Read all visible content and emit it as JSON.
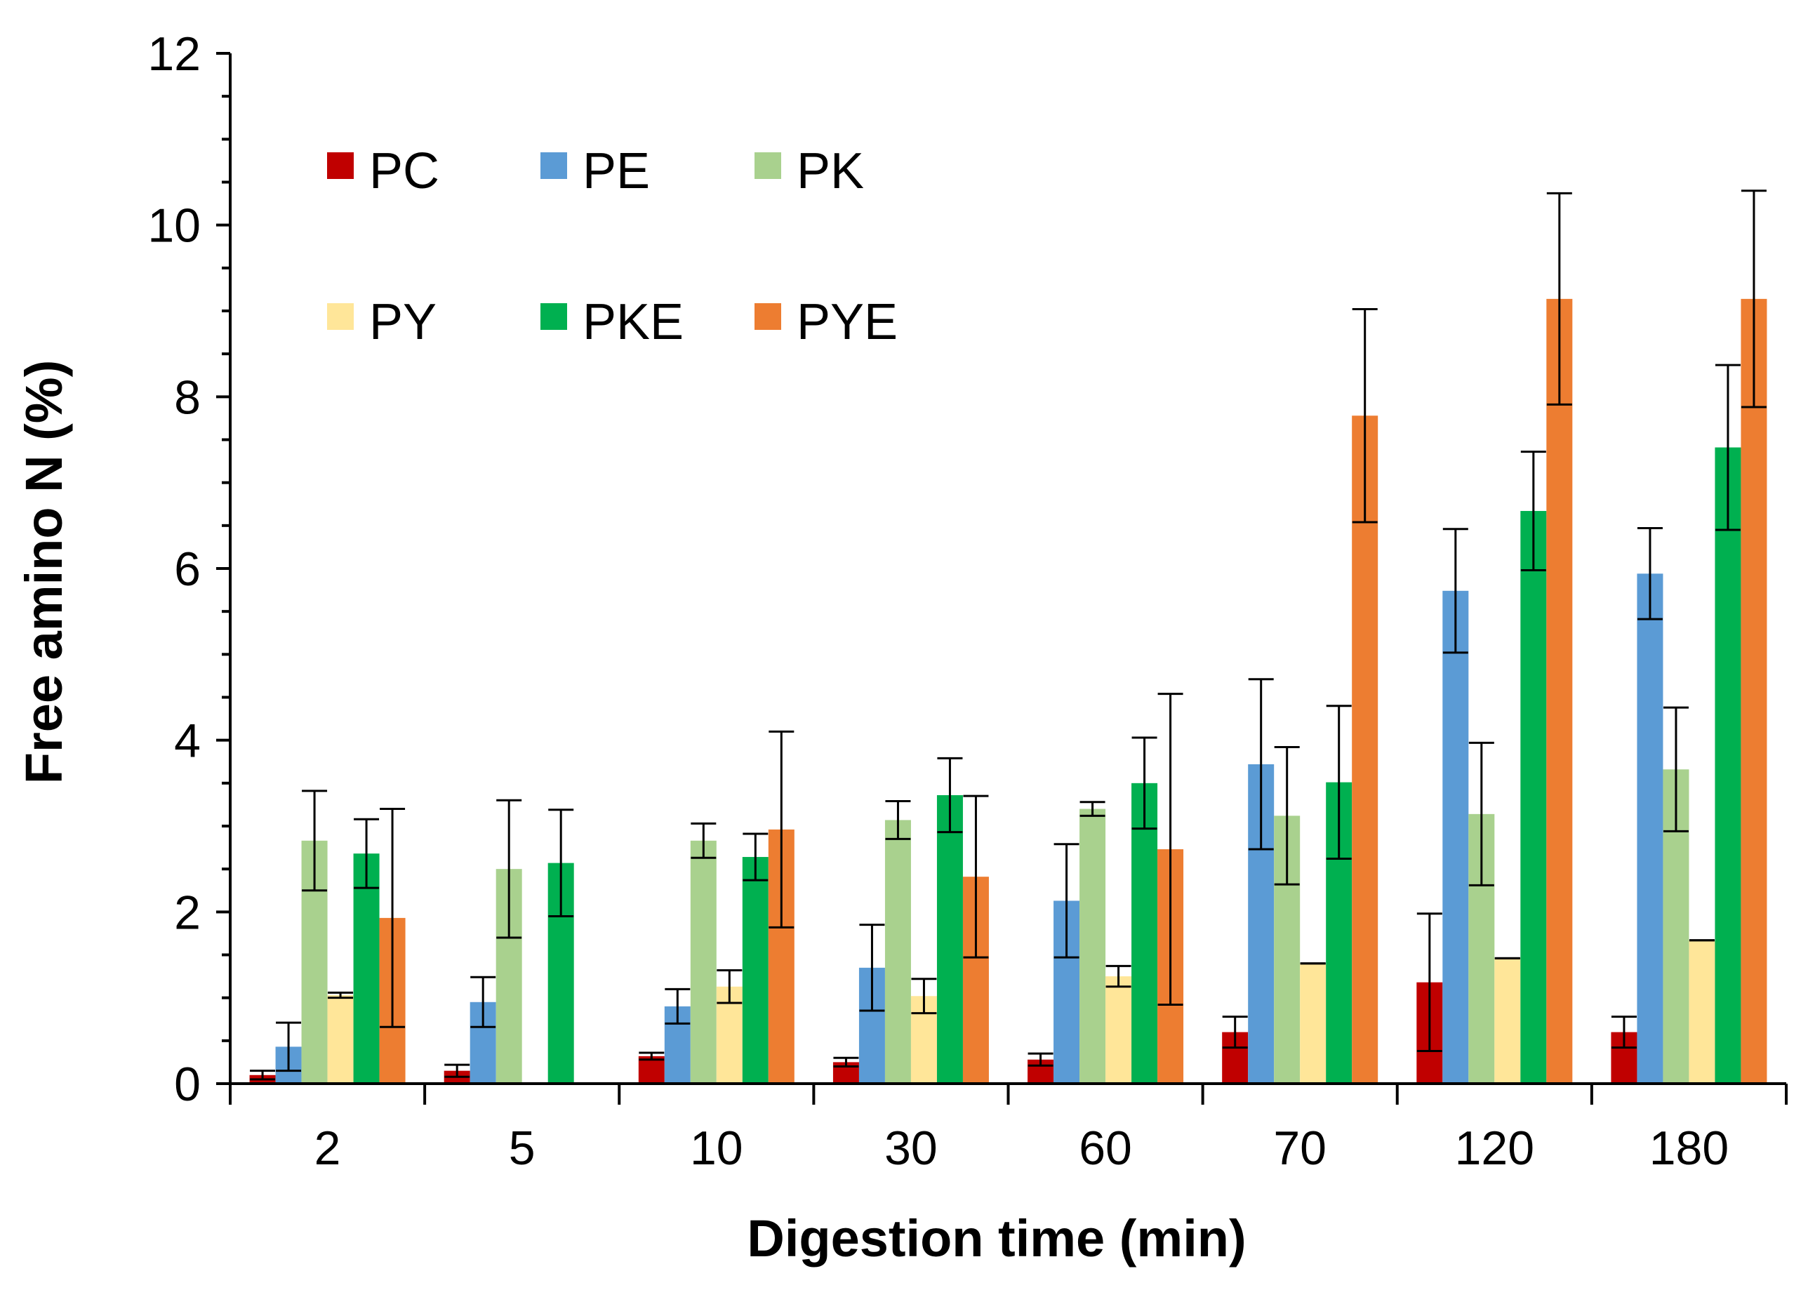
{
  "chart_data": {
    "type": "bar",
    "title": "",
    "xlabel": "Digestion time (min)",
    "ylabel": "Free amino N (%)",
    "ylim": [
      0,
      12
    ],
    "yticks": [
      0,
      2,
      4,
      6,
      8,
      10,
      12
    ],
    "categories": [
      "2",
      "5",
      "10",
      "30",
      "60",
      "70",
      "120",
      "180"
    ],
    "legend_position": "top-left",
    "series": [
      {
        "name": "PC",
        "color": "#c00000",
        "values": [
          0.1,
          0.15,
          0.32,
          0.25,
          0.28,
          0.6,
          1.18,
          0.6
        ],
        "errors": [
          0.05,
          0.07,
          0.04,
          0.05,
          0.07,
          0.18,
          0.8,
          0.18
        ]
      },
      {
        "name": "PE",
        "color": "#5b9bd5",
        "values": [
          0.43,
          0.95,
          0.9,
          1.35,
          2.13,
          3.72,
          5.74,
          5.94
        ],
        "errors": [
          0.28,
          0.29,
          0.2,
          0.5,
          0.66,
          0.99,
          0.72,
          0.53
        ]
      },
      {
        "name": "PK",
        "color": "#a9d18e",
        "values": [
          2.83,
          2.5,
          2.83,
          3.07,
          3.2,
          3.12,
          3.14,
          3.66
        ],
        "errors": [
          0.58,
          0.8,
          0.2,
          0.22,
          0.08,
          0.8,
          0.83,
          0.72
        ]
      },
      {
        "name": "PY",
        "color": "#ffe699",
        "values": [
          1.03,
          null,
          1.13,
          1.02,
          1.25,
          1.4,
          1.46,
          1.67
        ],
        "errors": [
          0.03,
          null,
          0.19,
          0.2,
          0.12,
          0,
          0,
          0
        ]
      },
      {
        "name": "PKE",
        "color": "#00b050",
        "values": [
          2.68,
          2.57,
          2.64,
          3.36,
          3.5,
          3.51,
          6.67,
          7.41
        ],
        "errors": [
          0.4,
          0.62,
          0.27,
          0.43,
          0.53,
          0.89,
          0.69,
          0.96
        ]
      },
      {
        "name": "PYE",
        "color": "#ed7d31",
        "values": [
          1.93,
          null,
          2.96,
          2.41,
          2.73,
          7.78,
          9.14,
          9.14
        ],
        "errors": [
          1.27,
          null,
          1.14,
          0.94,
          1.81,
          1.24,
          1.23,
          1.26
        ]
      }
    ]
  }
}
